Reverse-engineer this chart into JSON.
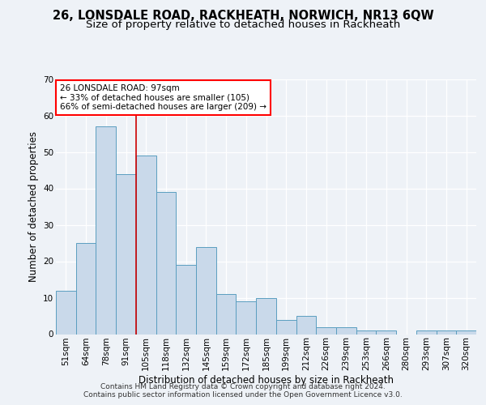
{
  "title": "26, LONSDALE ROAD, RACKHEATH, NORWICH, NR13 6QW",
  "subtitle": "Size of property relative to detached houses in Rackheath",
  "xlabel": "Distribution of detached houses by size in Rackheath",
  "ylabel": "Number of detached properties",
  "categories": [
    "51sqm",
    "64sqm",
    "78sqm",
    "91sqm",
    "105sqm",
    "118sqm",
    "132sqm",
    "145sqm",
    "159sqm",
    "172sqm",
    "185sqm",
    "199sqm",
    "212sqm",
    "226sqm",
    "239sqm",
    "253sqm",
    "266sqm",
    "280sqm",
    "293sqm",
    "307sqm",
    "320sqm"
  ],
  "values": [
    12,
    25,
    57,
    44,
    49,
    39,
    19,
    24,
    11,
    9,
    10,
    4,
    5,
    2,
    2,
    1,
    1,
    0,
    1,
    1,
    1
  ],
  "bar_color": "#c9d9ea",
  "bar_edge_color": "#5a9ec0",
  "vline_color": "#cc0000",
  "vline_x": 3.5,
  "annotation_text_line1": "26 LONSDALE ROAD: 97sqm",
  "annotation_text_line2": "← 33% of detached houses are smaller (105)",
  "annotation_text_line3": "66% of semi-detached houses are larger (209) →",
  "ylim": [
    0,
    70
  ],
  "yticks": [
    0,
    10,
    20,
    30,
    40,
    50,
    60,
    70
  ],
  "background_color": "#eef2f7",
  "grid_color": "#ffffff",
  "title_fontsize": 10.5,
  "subtitle_fontsize": 9.5,
  "axis_label_fontsize": 8.5,
  "tick_fontsize": 7.5,
  "footer_fontsize": 6.5,
  "footer_line1": "Contains HM Land Registry data © Crown copyright and database right 2024.",
  "footer_line2": "Contains public sector information licensed under the Open Government Licence v3.0."
}
